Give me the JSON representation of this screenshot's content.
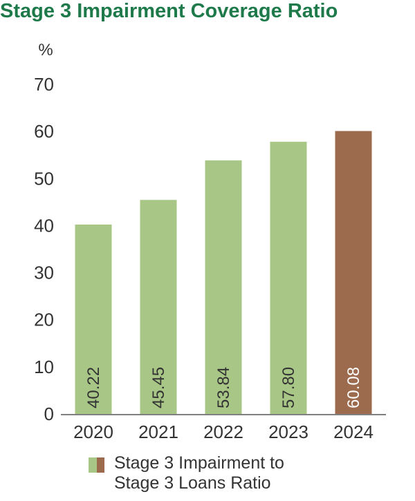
{
  "title": "Stage 3 Impairment Coverage Ratio",
  "colors": {
    "title": "#1e7a4a",
    "bar_default": "#a8c686",
    "bar_highlight": "#9c6b4e",
    "label_dark": "#333333",
    "label_light": "#ffffff",
    "axis": "#555555"
  },
  "chart_data": {
    "type": "bar",
    "unit": "%",
    "categories": [
      "2020",
      "2021",
      "2022",
      "2023",
      "2024"
    ],
    "values": [
      40.22,
      45.45,
      53.84,
      57.8,
      60.08
    ],
    "value_labels": [
      "40.22",
      "45.45",
      "53.84",
      "57.80",
      "60.08"
    ],
    "highlight_index": 4,
    "ylim": [
      0,
      70
    ],
    "yticks": [
      "0",
      "10",
      "20",
      "30",
      "40",
      "50",
      "60",
      "70"
    ],
    "grid": false,
    "series": [
      {
        "name": "Stage 3 Impairment to\nStage 3 Loans Ratio",
        "values": [
          40.22,
          45.45,
          53.84,
          57.8,
          60.08
        ]
      }
    ],
    "legend_position": "bottom"
  }
}
